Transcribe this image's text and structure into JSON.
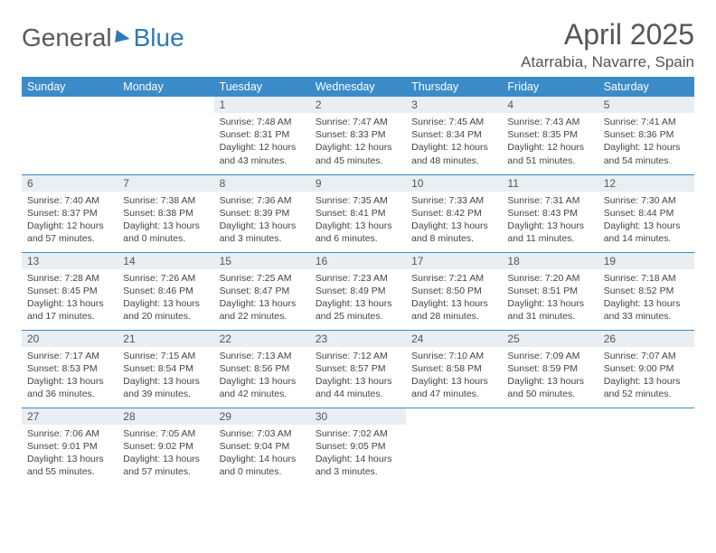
{
  "brand": {
    "part1": "General",
    "part2": "Blue"
  },
  "title": "April 2025",
  "location": "Atarrabia, Navarre, Spain",
  "accent_color": "#3b8bc9",
  "header_bg": "#e9eef2",
  "weekdays": [
    "Sunday",
    "Monday",
    "Tuesday",
    "Wednesday",
    "Thursday",
    "Friday",
    "Saturday"
  ],
  "first_weekday_index": 2,
  "days": [
    {
      "n": 1,
      "sr": "7:48 AM",
      "ss": "8:31 PM",
      "dh": 12,
      "dm": 43
    },
    {
      "n": 2,
      "sr": "7:47 AM",
      "ss": "8:33 PM",
      "dh": 12,
      "dm": 45
    },
    {
      "n": 3,
      "sr": "7:45 AM",
      "ss": "8:34 PM",
      "dh": 12,
      "dm": 48
    },
    {
      "n": 4,
      "sr": "7:43 AM",
      "ss": "8:35 PM",
      "dh": 12,
      "dm": 51
    },
    {
      "n": 5,
      "sr": "7:41 AM",
      "ss": "8:36 PM",
      "dh": 12,
      "dm": 54
    },
    {
      "n": 6,
      "sr": "7:40 AM",
      "ss": "8:37 PM",
      "dh": 12,
      "dm": 57
    },
    {
      "n": 7,
      "sr": "7:38 AM",
      "ss": "8:38 PM",
      "dh": 13,
      "dm": 0
    },
    {
      "n": 8,
      "sr": "7:36 AM",
      "ss": "8:39 PM",
      "dh": 13,
      "dm": 3
    },
    {
      "n": 9,
      "sr": "7:35 AM",
      "ss": "8:41 PM",
      "dh": 13,
      "dm": 6
    },
    {
      "n": 10,
      "sr": "7:33 AM",
      "ss": "8:42 PM",
      "dh": 13,
      "dm": 8
    },
    {
      "n": 11,
      "sr": "7:31 AM",
      "ss": "8:43 PM",
      "dh": 13,
      "dm": 11
    },
    {
      "n": 12,
      "sr": "7:30 AM",
      "ss": "8:44 PM",
      "dh": 13,
      "dm": 14
    },
    {
      "n": 13,
      "sr": "7:28 AM",
      "ss": "8:45 PM",
      "dh": 13,
      "dm": 17
    },
    {
      "n": 14,
      "sr": "7:26 AM",
      "ss": "8:46 PM",
      "dh": 13,
      "dm": 20
    },
    {
      "n": 15,
      "sr": "7:25 AM",
      "ss": "8:47 PM",
      "dh": 13,
      "dm": 22
    },
    {
      "n": 16,
      "sr": "7:23 AM",
      "ss": "8:49 PM",
      "dh": 13,
      "dm": 25
    },
    {
      "n": 17,
      "sr": "7:21 AM",
      "ss": "8:50 PM",
      "dh": 13,
      "dm": 28
    },
    {
      "n": 18,
      "sr": "7:20 AM",
      "ss": "8:51 PM",
      "dh": 13,
      "dm": 31
    },
    {
      "n": 19,
      "sr": "7:18 AM",
      "ss": "8:52 PM",
      "dh": 13,
      "dm": 33
    },
    {
      "n": 20,
      "sr": "7:17 AM",
      "ss": "8:53 PM",
      "dh": 13,
      "dm": 36
    },
    {
      "n": 21,
      "sr": "7:15 AM",
      "ss": "8:54 PM",
      "dh": 13,
      "dm": 39
    },
    {
      "n": 22,
      "sr": "7:13 AM",
      "ss": "8:56 PM",
      "dh": 13,
      "dm": 42
    },
    {
      "n": 23,
      "sr": "7:12 AM",
      "ss": "8:57 PM",
      "dh": 13,
      "dm": 44
    },
    {
      "n": 24,
      "sr": "7:10 AM",
      "ss": "8:58 PM",
      "dh": 13,
      "dm": 47
    },
    {
      "n": 25,
      "sr": "7:09 AM",
      "ss": "8:59 PM",
      "dh": 13,
      "dm": 50
    },
    {
      "n": 26,
      "sr": "7:07 AM",
      "ss": "9:00 PM",
      "dh": 13,
      "dm": 52
    },
    {
      "n": 27,
      "sr": "7:06 AM",
      "ss": "9:01 PM",
      "dh": 13,
      "dm": 55
    },
    {
      "n": 28,
      "sr": "7:05 AM",
      "ss": "9:02 PM",
      "dh": 13,
      "dm": 57
    },
    {
      "n": 29,
      "sr": "7:03 AM",
      "ss": "9:04 PM",
      "dh": 14,
      "dm": 0
    },
    {
      "n": 30,
      "sr": "7:02 AM",
      "ss": "9:05 PM",
      "dh": 14,
      "dm": 3
    }
  ],
  "labels": {
    "sunrise": "Sunrise:",
    "sunset": "Sunset:",
    "daylight": "Daylight:",
    "hours": "hours",
    "and": "and",
    "minutes": "minutes."
  }
}
